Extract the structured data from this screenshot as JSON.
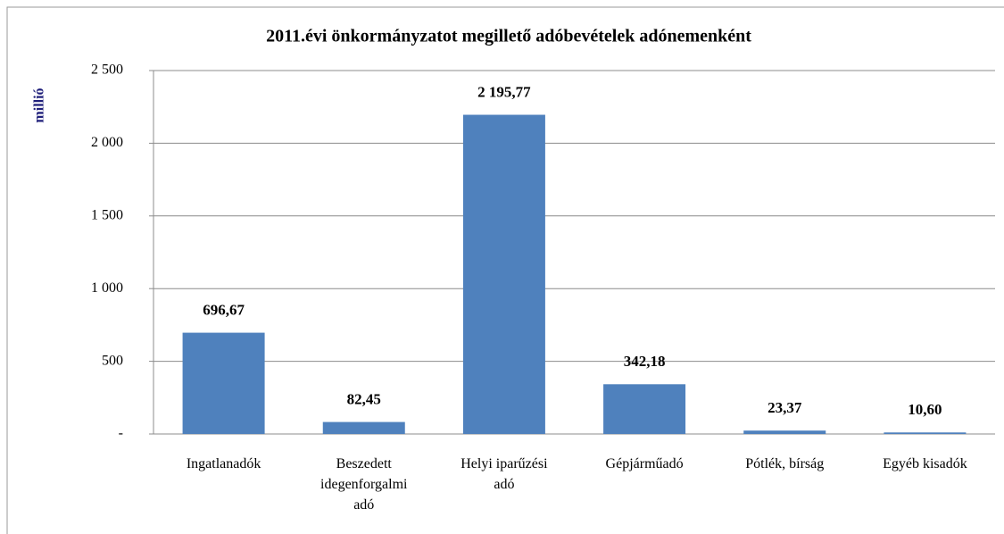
{
  "chart_data": {
    "type": "bar",
    "title": "2011.évi önkormányzatot megillető adóbevételek adónemenként",
    "y_label": "millió",
    "categories": [
      "Ingatlanadók",
      "Beszedett idegenforgalmi adó",
      "Helyi iparűzési adó",
      "Gépjárműadó",
      "Pótlék, bírság",
      "Egyéb kisadók"
    ],
    "values": [
      696.67,
      82.45,
      2195.77,
      342.18,
      23.37,
      10.6
    ],
    "value_labels": [
      "696,67",
      "82,45",
      "2 195,77",
      "342,18",
      "23,37",
      "10,60"
    ],
    "color": "#4f81bd",
    "ylim": [
      0,
      2500
    ],
    "yticks": [
      {
        "value": 0,
        "label": "-"
      },
      500,
      {
        "value": 1000,
        "label": "1 000"
      },
      {
        "value": 1500,
        "label": "1 500"
      },
      {
        "value": 2000,
        "label": "2 000"
      },
      {
        "value": 2500,
        "label": "2 500"
      }
    ],
    "grid": true
  }
}
